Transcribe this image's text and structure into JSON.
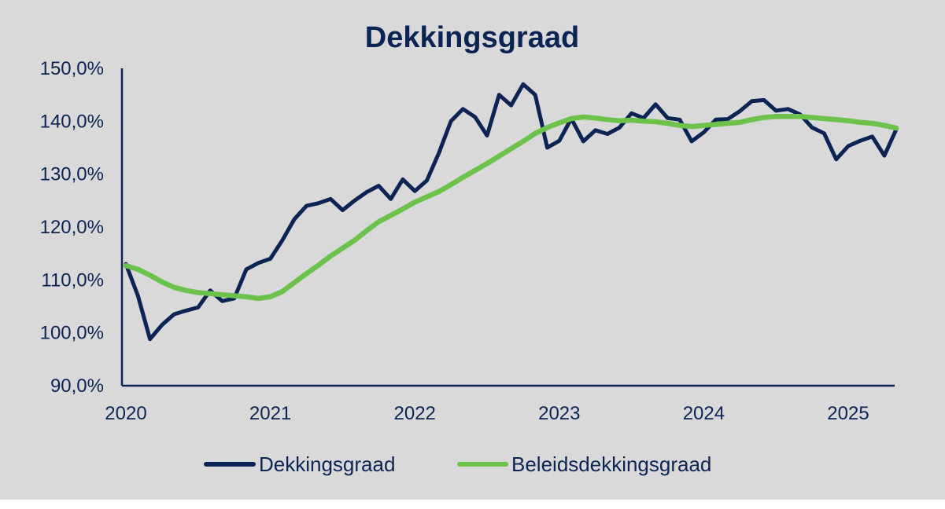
{
  "chart_data": {
    "type": "line",
    "title": "Dekkingsgraad",
    "xlabel": "",
    "ylabel": "",
    "x_ticks": [
      "2020",
      "2021",
      "2022",
      "2023",
      "2024",
      "2025"
    ],
    "y_ticks": [
      "90,0%",
      "100,0%",
      "110,0%",
      "120,0%",
      "130,0%",
      "140,0%",
      "150,0%"
    ],
    "ylim": [
      90,
      150
    ],
    "grid": false,
    "legend_position": "bottom",
    "series": [
      {
        "name": "Dekkingsgraad",
        "color": "#0b2454",
        "values": [
          113,
          107,
          98.8,
          101.5,
          103.5,
          104.2,
          104.8,
          108,
          106,
          106.5,
          112,
          113.2,
          114,
          117.5,
          121.5,
          124,
          124.5,
          125.3,
          123.2,
          125,
          126.6,
          127.8,
          125.3,
          129,
          126.8,
          128.8,
          134,
          140,
          142.3,
          140.8,
          137.3,
          145,
          143,
          147,
          145,
          135,
          136.3,
          140.5,
          136.2,
          138.3,
          137.6,
          138.8,
          141.5,
          140.6,
          143.2,
          140.6,
          140.3,
          136.2,
          137.9,
          140.3,
          140.4,
          141.9,
          143.8,
          144,
          142,
          142.3,
          141.3,
          138.8,
          137.7,
          132.8,
          135.3,
          136.3,
          137.1,
          133.5,
          138.5
        ]
      },
      {
        "name": "Beleidsdekkingsgraad",
        "color": "#6dc24b",
        "values": [
          112.7,
          112,
          110.9,
          109.6,
          108.6,
          108,
          107.6,
          107.4,
          107.2,
          107,
          106.8,
          106.5,
          106.8,
          107.8,
          109.5,
          111.2,
          112.8,
          114.5,
          116,
          117.5,
          119.3,
          121,
          122.2,
          123.4,
          124.7,
          125.7,
          126.7,
          128,
          129.4,
          130.7,
          132,
          133.4,
          134.8,
          136.2,
          137.7,
          138.8,
          139.7,
          140.5,
          140.8,
          140.6,
          140.3,
          140.1,
          140.2,
          140,
          139.9,
          139.6,
          139.2,
          139,
          139.2,
          139.4,
          139.6,
          139.8,
          140.3,
          140.7,
          140.9,
          140.9,
          140.9,
          140.7,
          140.5,
          140.3,
          140.1,
          139.8,
          139.6,
          139.2,
          138.7
        ]
      }
    ]
  }
}
